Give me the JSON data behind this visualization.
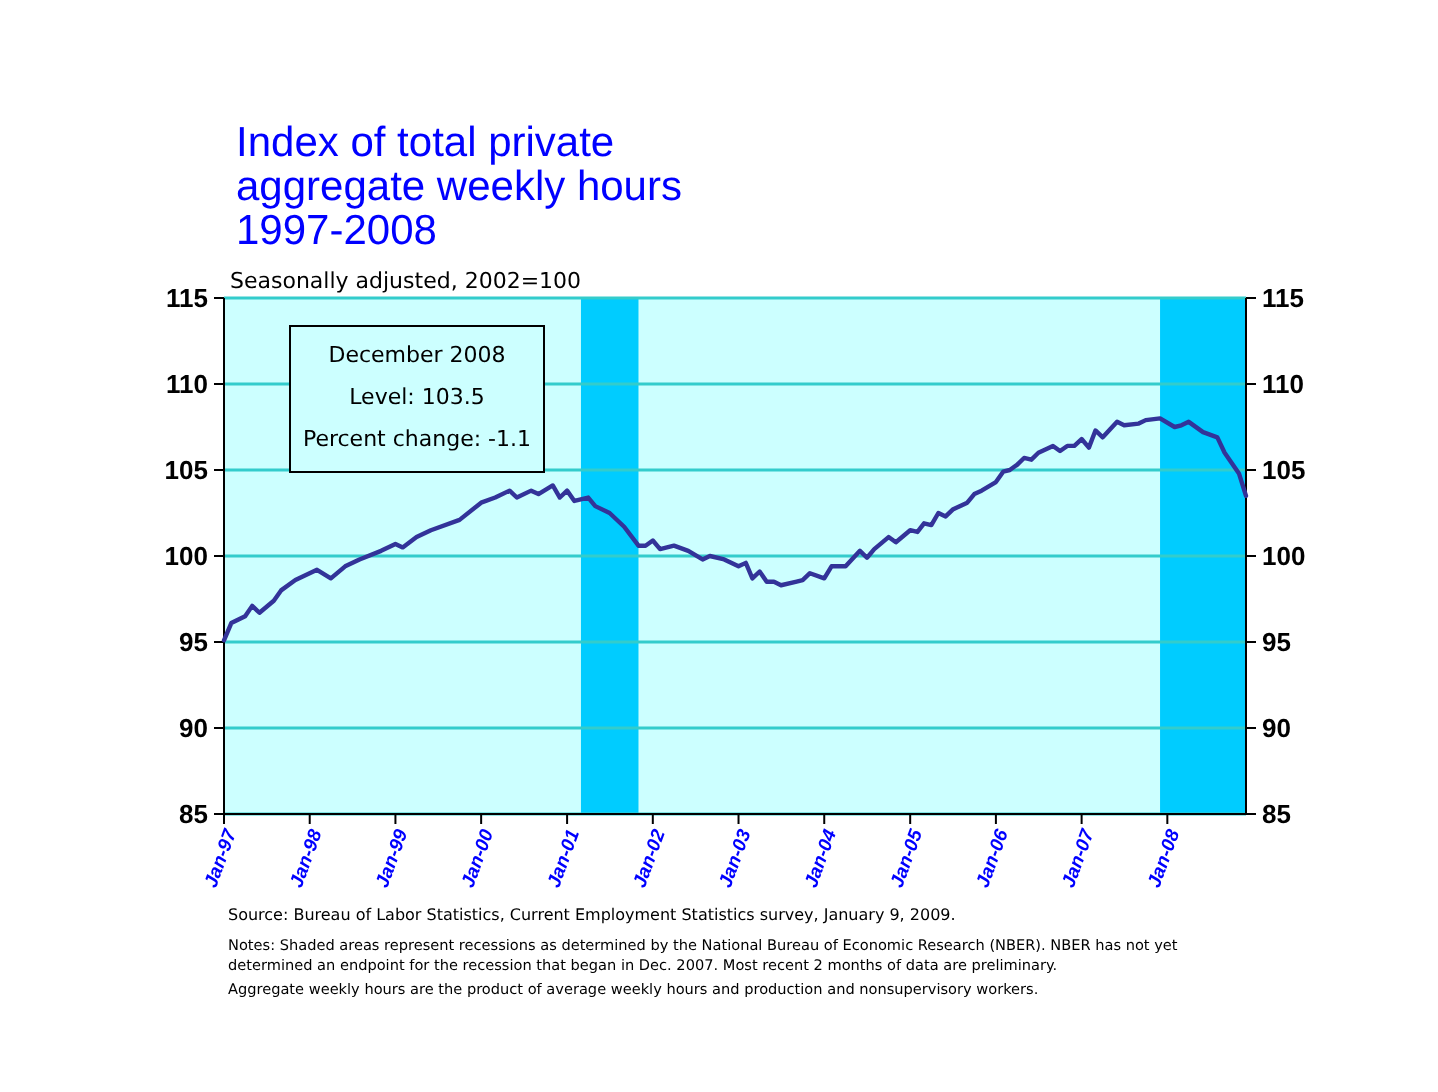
{
  "chart_data": {
    "type": "line",
    "title": "Index of total private\naggregate weekly hours\n1997-2008",
    "subtitle": "Seasonally adjusted, 2002=100",
    "annotations": [
      "December 2008\nLevel: 103.5\nPercent change: -1.1",
      "Source:  Bureau of Labor Statistics, Current Employment Statistics survey, January 9, 2009.",
      "Notes: Shaded areas represent recessions as determined by the National Bureau of Economic Research (NBER). NBER has not yet\ndetermined an endpoint for the recession that began in Dec. 2007. Most recent 2 months of data are preliminary.",
      "Aggregate weekly hours are the product of average weekly hours and production and nonsupervisory workers."
    ],
    "x": [
      "1997-01",
      "1997-02",
      "1997-04",
      "1997-05",
      "1997-06",
      "1997-08",
      "1997-09",
      "1997-11",
      "1998-02",
      "1998-04",
      "1998-06",
      "1998-08",
      "1998-11",
      "1999-01",
      "1999-02",
      "1999-04",
      "1999-06",
      "1999-10",
      "2000-01",
      "2000-03",
      "2000-05",
      "2000-06",
      "2000-08",
      "2000-09",
      "2000-11",
      "2000-12",
      "2001-01",
      "2001-02",
      "2001-04",
      "2001-05",
      "2001-07",
      "2001-09",
      "2001-11",
      "2001-12",
      "2002-01",
      "2002-02",
      "2002-04",
      "2002-06",
      "2002-08",
      "2002-09",
      "2002-11",
      "2003-01",
      "2003-02",
      "2003-03",
      "2003-04",
      "2003-05",
      "2003-06",
      "2003-07",
      "2003-09",
      "2003-10",
      "2003-11",
      "2004-01",
      "2004-02",
      "2004-04",
      "2004-06",
      "2004-07",
      "2004-08",
      "2004-10",
      "2004-11",
      "2005-01",
      "2005-02",
      "2005-03",
      "2005-04",
      "2005-05",
      "2005-06",
      "2005-07",
      "2005-09",
      "2005-10",
      "2005-11",
      "2006-01",
      "2006-02",
      "2006-03",
      "2006-04",
      "2006-05",
      "2006-06",
      "2006-07",
      "2006-09",
      "2006-10",
      "2006-11",
      "2006-12",
      "2007-01",
      "2007-02",
      "2007-03",
      "2007-04",
      "2007-06",
      "2007-07",
      "2007-09",
      "2007-10",
      "2007-12",
      "2008-02",
      "2008-03",
      "2008-04",
      "2008-06",
      "2008-08",
      "2008-09",
      "2008-11",
      "2008-12"
    ],
    "series": [
      {
        "color": "#333399",
        "values": [
          95.1,
          96.1,
          96.5,
          97.1,
          96.7,
          97.4,
          98.0,
          98.6,
          99.2,
          98.7,
          99.4,
          99.8,
          100.3,
          100.7,
          100.5,
          101.1,
          101.5,
          102.1,
          103.1,
          103.4,
          103.8,
          103.4,
          103.8,
          103.6,
          104.1,
          103.4,
          103.8,
          103.2,
          103.4,
          102.9,
          102.5,
          101.7,
          100.6,
          100.6,
          100.9,
          100.4,
          100.6,
          100.3,
          99.8,
          100.0,
          99.8,
          99.4,
          99.6,
          98.7,
          99.1,
          98.5,
          98.5,
          98.3,
          98.5,
          98.6,
          99.0,
          98.7,
          99.4,
          99.4,
          100.3,
          99.9,
          100.4,
          101.1,
          100.8,
          101.5,
          101.4,
          101.9,
          101.8,
          102.5,
          102.3,
          102.7,
          103.1,
          103.6,
          103.8,
          104.3,
          104.9,
          105.0,
          105.3,
          105.7,
          105.6,
          106.0,
          106.4,
          106.1,
          106.4,
          106.4,
          106.8,
          106.3,
          107.3,
          106.9,
          107.8,
          107.6,
          107.7,
          107.9,
          108.0,
          107.5,
          107.6,
          107.8,
          107.2,
          106.9,
          106.0,
          104.8,
          103.5
        ]
      }
    ],
    "xlim": [
      "1997-01",
      "2008-12"
    ],
    "xticks": [
      {
        "value": "1997-01",
        "label": "Jan-97"
      },
      {
        "value": "1998-01",
        "label": "Jan-98"
      },
      {
        "value": "1999-01",
        "label": "Jan-99"
      },
      {
        "value": "2000-01",
        "label": "Jan-00"
      },
      {
        "value": "2001-01",
        "label": "Jan-01"
      },
      {
        "value": "2002-01",
        "label": "Jan-02"
      },
      {
        "value": "2003-01",
        "label": "Jan-03"
      },
      {
        "value": "2004-01",
        "label": "Jan-04"
      },
      {
        "value": "2005-01",
        "label": "Jan-05"
      },
      {
        "value": "2006-01",
        "label": "Jan-06"
      },
      {
        "value": "2007-01",
        "label": "Jan-07"
      },
      {
        "value": "2008-01",
        "label": "Jan-08"
      }
    ],
    "ylim": [
      85,
      115
    ],
    "yticks": [
      85,
      90,
      95,
      100,
      105,
      110,
      115
    ],
    "y2lim": [
      85,
      115
    ],
    "y2ticks": [
      85,
      90,
      95,
      100,
      105,
      110,
      115
    ],
    "bands": [
      {
        "axis": "x",
        "from": "2001-03",
        "to": "2001-11",
        "color": "#00ccff"
      },
      {
        "axis": "x",
        "from": "2007-12",
        "to": "2008-12",
        "color": "#00ccff"
      }
    ],
    "grid": "y"
  }
}
